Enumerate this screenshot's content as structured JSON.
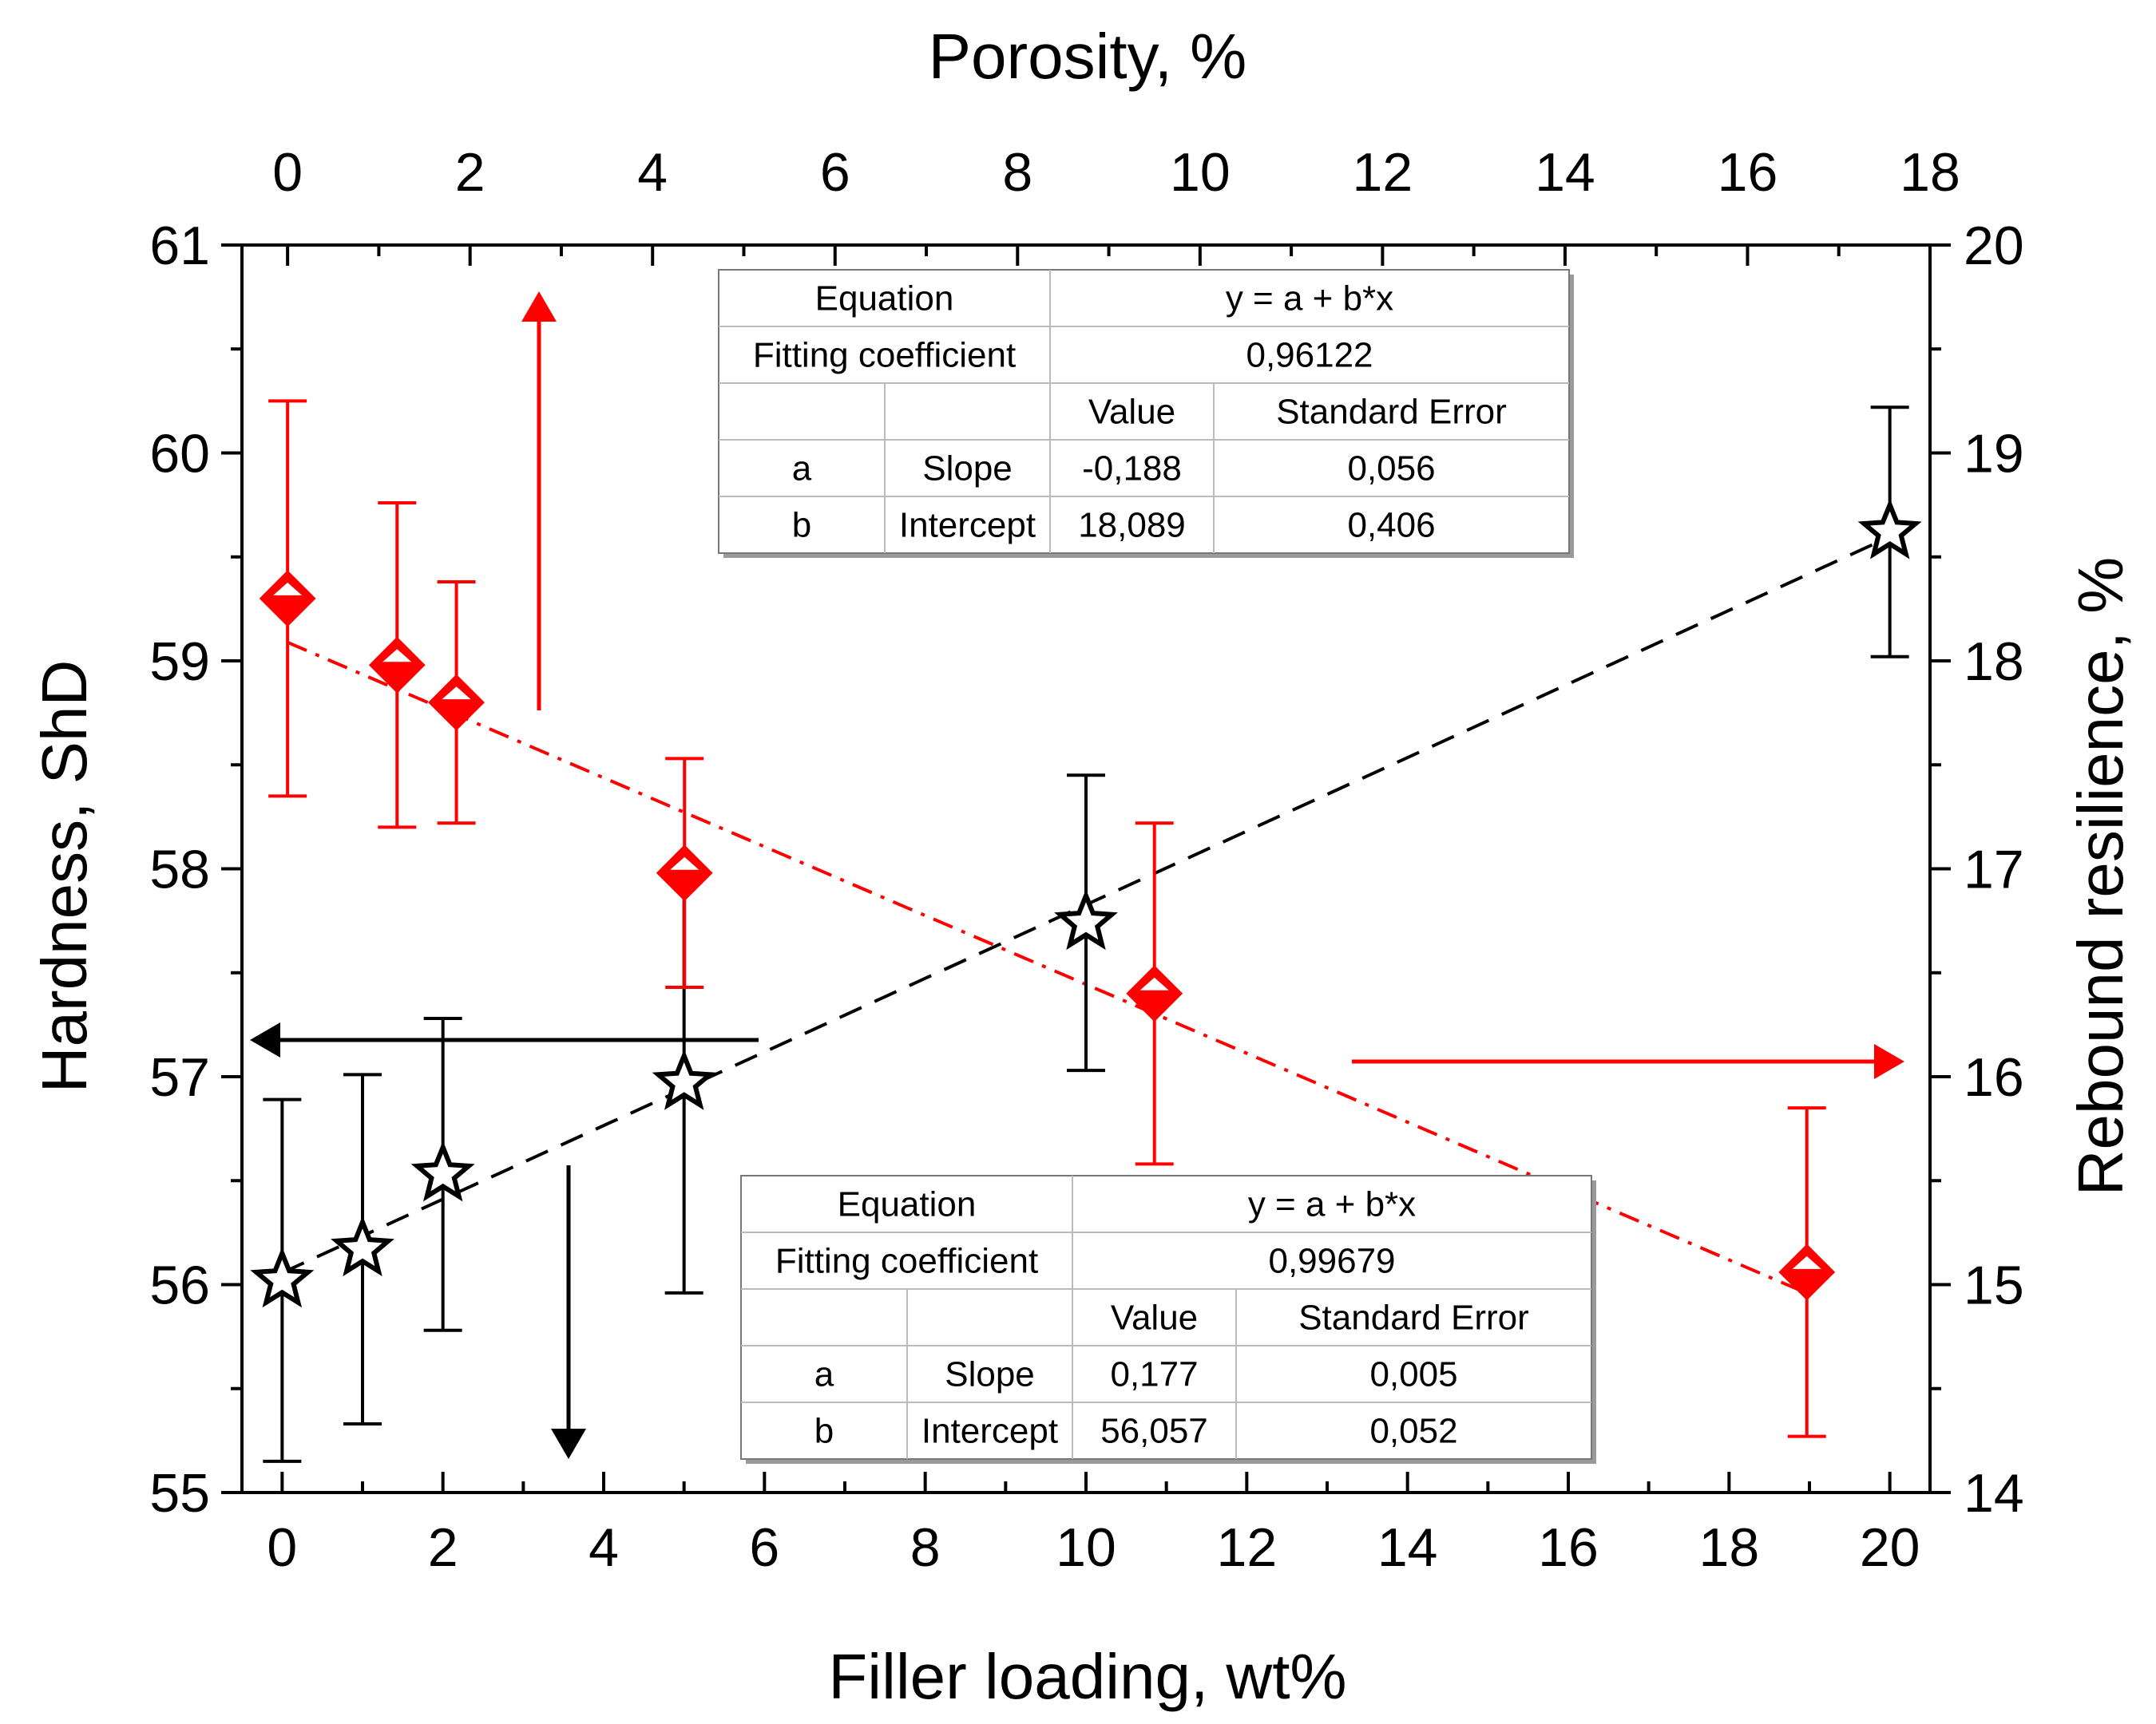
{
  "chart_data": {
    "type": "scatter",
    "xlabel_bottom": "Filler loading, wt%",
    "xlabel_top": "Porosity, %",
    "ylabel_left": "Hardness, ShD",
    "ylabel_right": "Rebound resilience, %",
    "x_bottom_lim": [
      -0.5,
      20.5
    ],
    "x_bottom_ticks": [
      0,
      2,
      4,
      6,
      8,
      10,
      12,
      14,
      16,
      18,
      20
    ],
    "x_top_lim": [
      -0.5,
      18
    ],
    "x_top_ticks": [
      0,
      2,
      4,
      6,
      8,
      10,
      12,
      14,
      16,
      18
    ],
    "y_left_lim": [
      55,
      61
    ],
    "y_left_ticks": [
      55,
      56,
      57,
      58,
      59,
      60,
      61
    ],
    "y_right_lim": [
      14,
      20
    ],
    "y_right_ticks": [
      14,
      15,
      16,
      17,
      18,
      19,
      20
    ],
    "grid": false,
    "series": [
      {
        "axis": "bottom-left",
        "marker": "star",
        "color": "#000000",
        "x": [
          0,
          1,
          2,
          5,
          10,
          20
        ],
        "y": [
          56.02,
          56.17,
          56.53,
          56.97,
          57.74,
          59.62
        ],
        "err": [
          0.87,
          0.84,
          0.75,
          1.01,
          0.71,
          0.6
        ],
        "fit": {
          "a": 56.057,
          "b": 0.177,
          "x_range": [
            0,
            20
          ]
        }
      },
      {
        "axis": "top-right",
        "marker": "diamond",
        "color": "#ff0000",
        "x": [
          0,
          1.2,
          1.85,
          4.35,
          9.5,
          16.65
        ],
        "y": [
          18.3,
          17.98,
          17.8,
          16.98,
          16.4,
          15.06
        ],
        "err": [
          0.95,
          0.78,
          0.58,
          0.55,
          0.82,
          0.79
        ],
        "fit": {
          "a": 18.089,
          "b": -0.188,
          "x_range": [
            0,
            16.65
          ]
        }
      }
    ],
    "annotations": [
      {
        "direction": "up",
        "color": "#ff0000"
      },
      {
        "direction": "right",
        "color": "#ff0000"
      },
      {
        "direction": "left",
        "color": "#000000"
      },
      {
        "direction": "down",
        "color": "#000000"
      }
    ],
    "tables": [
      {
        "equation_label": "Equation",
        "equation": "y = a + b*x",
        "fit_label": "Fitting coefficient",
        "fit_value": "0,96122",
        "value_header": "Value",
        "error_header": "Standard Error",
        "rows": [
          {
            "param": "a",
            "name": "Slope",
            "value": "-0,188",
            "error": "0,056"
          },
          {
            "param": "b",
            "name": "Intercept",
            "value": "18,089",
            "error": "0,406"
          }
        ]
      },
      {
        "equation_label": "Equation",
        "equation": "y = a + b*x",
        "fit_label": "Fitting coefficient",
        "fit_value": "0,99679",
        "value_header": "Value",
        "error_header": "Standard Error",
        "rows": [
          {
            "param": "a",
            "name": "Slope",
            "value": "0,177",
            "error": "0,005"
          },
          {
            "param": "b",
            "name": "Intercept",
            "value": "56,057",
            "error": "0,052"
          }
        ]
      }
    ]
  }
}
